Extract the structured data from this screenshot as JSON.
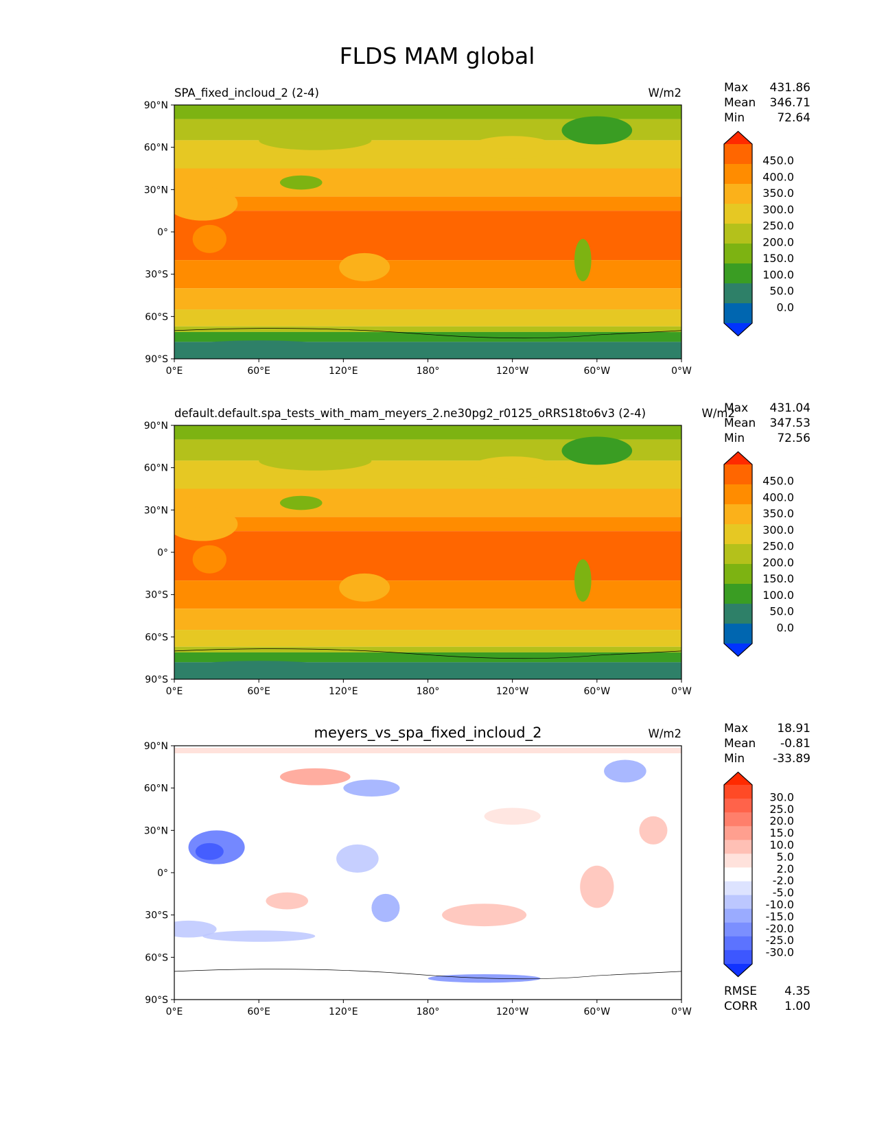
{
  "figure_title": "FLDS MAM global",
  "lat_ticks": [
    "90°N",
    "60°N",
    "30°N",
    "0°",
    "30°S",
    "60°S",
    "90°S"
  ],
  "lon_ticks": [
    "0°E",
    "60°E",
    "120°E",
    "180°",
    "120°W",
    "60°W",
    "0°W"
  ],
  "chart_data": [
    {
      "type": "heatmap",
      "title_left": "SPA_fixed_incloud_2 (2-4)",
      "title_center": "",
      "units": "W/m2",
      "stats": {
        "max_label": "Max",
        "max": "431.86",
        "mean_label": "Mean",
        "mean": "346.71",
        "min_label": "Min",
        "min": "72.64"
      },
      "colorbar_ticks": [
        "450.0",
        "400.0",
        "350.0",
        "300.0",
        "250.0",
        "200.0",
        "150.0",
        "100.0",
        "50.0",
        "0.0"
      ],
      "colors": [
        "#ff2a00",
        "#ff6600",
        "#ff8c00",
        "#fbb11a",
        "#e6c823",
        "#b4c11b",
        "#7db312",
        "#3a9d23",
        "#2e8068",
        "#0066b0",
        "#0033ff"
      ]
    },
    {
      "type": "heatmap",
      "title_left": "default.default.spa_tests_with_mam_meyers_2.ne30pg2_r0125_oRRS18to6v3 (2-4)",
      "title_center": "",
      "units": "W/m2",
      "stats": {
        "max_label": "Max",
        "max": "431.04",
        "mean_label": "Mean",
        "mean": "347.53",
        "min_label": "Min",
        "min": "72.56"
      },
      "colorbar_ticks": [
        "450.0",
        "400.0",
        "350.0",
        "300.0",
        "250.0",
        "200.0",
        "150.0",
        "100.0",
        "50.0",
        "0.0"
      ],
      "colors": [
        "#ff2a00",
        "#ff6600",
        "#ff8c00",
        "#fbb11a",
        "#e6c823",
        "#b4c11b",
        "#7db312",
        "#3a9d23",
        "#2e8068",
        "#0066b0",
        "#0033ff"
      ]
    },
    {
      "type": "heatmap",
      "title_left": "",
      "title_center": "meyers_vs_spa_fixed_incloud_2",
      "units": "W/m2",
      "stats": {
        "max_label": "Max",
        "max": "18.91",
        "mean_label": "Mean",
        "mean": "-0.81",
        "min_label": "Min",
        "min": "-33.89"
      },
      "colorbar_ticks": [
        "30.0",
        "25.0",
        "20.0",
        "15.0",
        "10.0",
        "5.0",
        "2.0",
        "-2.0",
        "-5.0",
        "-10.0",
        "-15.0",
        "-20.0",
        "-25.0",
        "-30.0"
      ],
      "colors": [
        "#ff2a00",
        "#ff4a26",
        "#ff634a",
        "#ff7f6b",
        "#ff9f8f",
        "#ffc0b5",
        "#ffe2dc",
        "#ffffff",
        "#dde3ff",
        "#bcc7ff",
        "#9aabff",
        "#7b8fff",
        "#5c73ff",
        "#3d57ff",
        "#1133ff"
      ],
      "rmse_label": "RMSE",
      "rmse": "4.35",
      "corr_label": "CORR",
      "corr": "1.00"
    }
  ]
}
